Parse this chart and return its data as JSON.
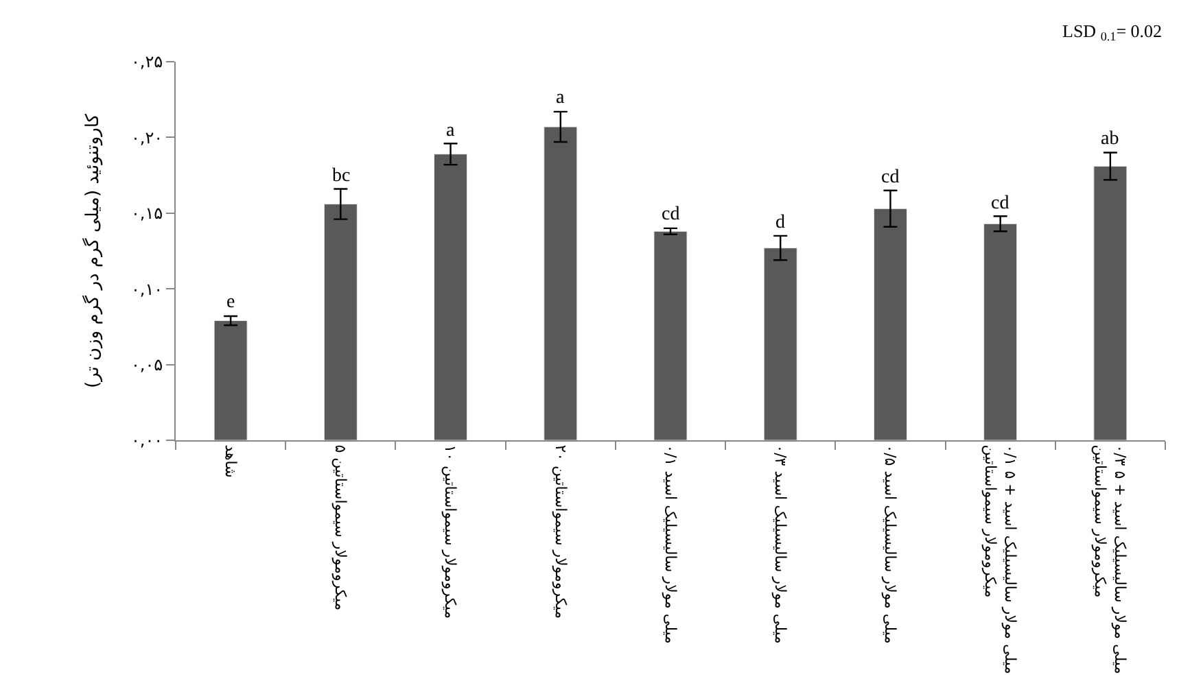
{
  "chart_data": {
    "type": "bar",
    "ylabel": "کاروتنوئید (میلی گرم در گرم وزن تر)",
    "categories": [
      "شاهد",
      "۵ میکرومولار سیمواستاتین",
      "۱۰ میکرومولار سیمواستاتین",
      "۲۰ میکرومولار سیمواستاتین",
      "۰/۱ میلی مولار سالیسیلیک اسید",
      "۰/۳ میلی مولار سالیسیلیک اسید",
      "۰/۵ میلی مولار سالیسیلیک اسید",
      "۰/۱ میلی مولار سالیسیلیک اسید + ۵\nمیکرومولار سیمواستاتین",
      "۰/۳ میلی مولار سالیسیلیک اسید + ۵\nمیکرومولار سیمواستاتین"
    ],
    "values": [
      0.079,
      0.156,
      0.189,
      0.207,
      0.138,
      0.127,
      0.153,
      0.143,
      0.181
    ],
    "errors": [
      0.003,
      0.01,
      0.007,
      0.01,
      0.002,
      0.008,
      0.012,
      0.005,
      0.009
    ],
    "color": "#595959",
    "ylim": [
      0,
      0.25
    ],
    "yticks": [
      {
        "value": 0,
        "label": "۰,۰۰"
      },
      {
        "value": 0.05,
        "label": "۰,۰۵"
      },
      {
        "value": 0.1,
        "label": "۰,۱۰"
      },
      {
        "value": 0.15,
        "label": "۰,۱۵"
      },
      {
        "value": 0.2,
        "label": "۰,۲۰"
      },
      {
        "value": 0.25,
        "label": "۰,۲۵"
      }
    ],
    "legend": false,
    "annotations": [
      {
        "text": "e",
        "x": "شاهد",
        "y": 0.082
      },
      {
        "text": "bc",
        "x": "۵ میکرومولار سیمواستاتین",
        "y": 0.166
      },
      {
        "text": "a",
        "x": "۱۰ میکرومولار سیمواستاتین",
        "y": 0.196
      },
      {
        "text": "a",
        "x": "۲۰ میکرومولار سیمواستاتین",
        "y": 0.217
      },
      {
        "text": "cd",
        "x": "۰/۱ میلی مولار سالیسیلیک اسید",
        "y": 0.14
      },
      {
        "text": "d",
        "x": "۰/۳ میلی مولار سالیسیلیک اسید",
        "y": 0.135
      },
      {
        "text": "cd",
        "x": "۰/۵ میلی مولار سالیسیلیک اسید",
        "y": 0.165
      },
      {
        "text": "cd",
        "x": "۰/۱ میلی مولار سالیسیلیک اسید + ۵\nمیکرومولار سیمواستاتین",
        "y": 0.148
      },
      {
        "text": "ab",
        "x": "۰/۳ میلی مولار سالیسیلیک اسید + ۵\nمیکرومولار سیمواستاتین",
        "y": 0.19
      },
      "LSD $_{0.1}$= 0.02"
    ]
  }
}
